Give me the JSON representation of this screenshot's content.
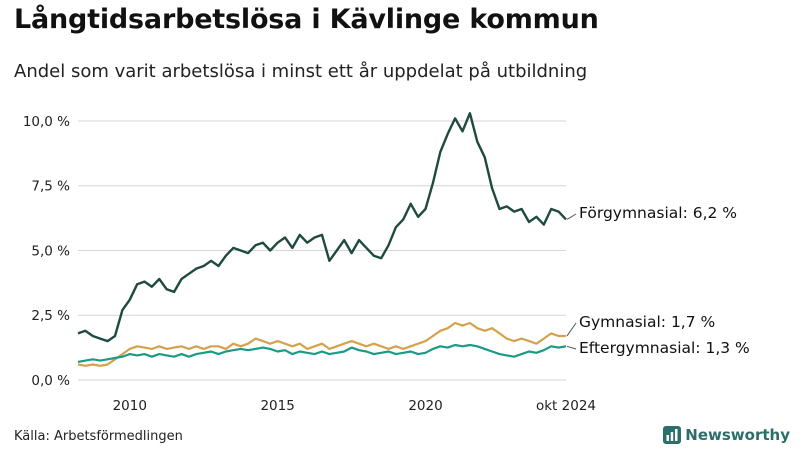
{
  "title": "Långtidsarbetslösa i Kävlinge kommun",
  "subtitle": "Andel som varit arbetslösa i minst ett år uppdelat på utbildning",
  "source": "Källa: Arbetsförmedlingen",
  "brand": "Newsworthy",
  "brand_icon": "bar-chart-icon",
  "colors": {
    "forgymnasial": "#1f4a3f",
    "gymnasial": "#d4a24c",
    "eftergymnasial": "#1b9a86",
    "grid": "#d6d6d6",
    "brand": "#2c6e6c"
  },
  "chart_data": {
    "type": "line",
    "x_start": "2008-04",
    "x_end": "2024-10",
    "x_ticks": [
      {
        "x": "2010-01",
        "label": "2010"
      },
      {
        "x": "2015-01",
        "label": "2015"
      },
      {
        "x": "2020-01",
        "label": "2020"
      },
      {
        "x": "2024-10",
        "label": "okt 2024"
      }
    ],
    "ylim": [
      0,
      10.5
    ],
    "y_ticks": [
      {
        "y": 0,
        "label": "0,0 %"
      },
      {
        "y": 2.5,
        "label": "2,5 %"
      },
      {
        "y": 5,
        "label": "5,0 %"
      },
      {
        "y": 7.5,
        "label": "7,5 %"
      },
      {
        "y": 10,
        "label": "10,0 %"
      }
    ],
    "grid": true,
    "series": [
      {
        "name": "Förgymnasial",
        "label": "Förgymnasial: 6,2 %",
        "last_value": 6.2,
        "color": "#1f4a3f",
        "x": [
          "2008-04",
          "2008-07",
          "2008-10",
          "2009-01",
          "2009-04",
          "2009-07",
          "2009-10",
          "2010-01",
          "2010-04",
          "2010-07",
          "2010-10",
          "2011-01",
          "2011-04",
          "2011-07",
          "2011-10",
          "2012-01",
          "2012-04",
          "2012-07",
          "2012-10",
          "2013-01",
          "2013-04",
          "2013-07",
          "2013-10",
          "2014-01",
          "2014-04",
          "2014-07",
          "2014-10",
          "2015-01",
          "2015-04",
          "2015-07",
          "2015-10",
          "2016-01",
          "2016-04",
          "2016-07",
          "2016-10",
          "2017-01",
          "2017-04",
          "2017-07",
          "2017-10",
          "2018-01",
          "2018-04",
          "2018-07",
          "2018-10",
          "2019-01",
          "2019-04",
          "2019-07",
          "2019-10",
          "2020-01",
          "2020-04",
          "2020-07",
          "2020-10",
          "2021-01",
          "2021-04",
          "2021-07",
          "2021-10",
          "2022-01",
          "2022-04",
          "2022-07",
          "2022-10",
          "2023-01",
          "2023-04",
          "2023-07",
          "2023-10",
          "2024-01",
          "2024-04",
          "2024-07",
          "2024-10"
        ],
        "y": [
          1.8,
          1.9,
          1.7,
          1.6,
          1.5,
          1.7,
          2.7,
          3.1,
          3.7,
          3.8,
          3.6,
          3.9,
          3.5,
          3.4,
          3.9,
          4.1,
          4.3,
          4.4,
          4.6,
          4.4,
          4.8,
          5.1,
          5.0,
          4.9,
          5.2,
          5.3,
          5.0,
          5.3,
          5.5,
          5.1,
          5.6,
          5.3,
          5.5,
          5.6,
          4.6,
          5.0,
          5.4,
          4.9,
          5.4,
          5.1,
          4.8,
          4.7,
          5.2,
          5.9,
          6.2,
          6.8,
          6.3,
          6.6,
          7.6,
          8.8,
          9.5,
          10.1,
          9.6,
          10.3,
          9.2,
          8.6,
          7.4,
          6.6,
          6.7,
          6.5,
          6.6,
          6.1,
          6.3,
          6.0,
          6.6,
          6.5,
          6.2
        ]
      },
      {
        "name": "Gymnasial",
        "label": "Gymnasial: 1,7 %",
        "last_value": 1.7,
        "color": "#d4a24c",
        "x": [
          "2008-04",
          "2008-07",
          "2008-10",
          "2009-01",
          "2009-04",
          "2009-07",
          "2009-10",
          "2010-01",
          "2010-04",
          "2010-07",
          "2010-10",
          "2011-01",
          "2011-04",
          "2011-07",
          "2011-10",
          "2012-01",
          "2012-04",
          "2012-07",
          "2012-10",
          "2013-01",
          "2013-04",
          "2013-07",
          "2013-10",
          "2014-01",
          "2014-04",
          "2014-07",
          "2014-10",
          "2015-01",
          "2015-04",
          "2015-07",
          "2015-10",
          "2016-01",
          "2016-04",
          "2016-07",
          "2016-10",
          "2017-01",
          "2017-04",
          "2017-07",
          "2017-10",
          "2018-01",
          "2018-04",
          "2018-07",
          "2018-10",
          "2019-01",
          "2019-04",
          "2019-07",
          "2019-10",
          "2020-01",
          "2020-04",
          "2020-07",
          "2020-10",
          "2021-01",
          "2021-04",
          "2021-07",
          "2021-10",
          "2022-01",
          "2022-04",
          "2022-07",
          "2022-10",
          "2023-01",
          "2023-04",
          "2023-07",
          "2023-10",
          "2024-01",
          "2024-04",
          "2024-07",
          "2024-10"
        ],
        "y": [
          0.6,
          0.55,
          0.6,
          0.55,
          0.6,
          0.8,
          1.0,
          1.2,
          1.3,
          1.25,
          1.2,
          1.3,
          1.2,
          1.25,
          1.3,
          1.2,
          1.3,
          1.2,
          1.3,
          1.3,
          1.2,
          1.4,
          1.3,
          1.4,
          1.6,
          1.5,
          1.4,
          1.5,
          1.4,
          1.3,
          1.4,
          1.2,
          1.3,
          1.4,
          1.2,
          1.3,
          1.4,
          1.5,
          1.4,
          1.3,
          1.4,
          1.3,
          1.2,
          1.3,
          1.2,
          1.3,
          1.4,
          1.5,
          1.7,
          1.9,
          2.0,
          2.2,
          2.1,
          2.2,
          2.0,
          1.9,
          2.0,
          1.8,
          1.6,
          1.5,
          1.6,
          1.5,
          1.4,
          1.6,
          1.8,
          1.7,
          1.7
        ]
      },
      {
        "name": "Eftergymnasial",
        "label": "Eftergymnasial: 1,3 %",
        "last_value": 1.3,
        "color": "#1b9a86",
        "x": [
          "2008-04",
          "2008-07",
          "2008-10",
          "2009-01",
          "2009-04",
          "2009-07",
          "2009-10",
          "2010-01",
          "2010-04",
          "2010-07",
          "2010-10",
          "2011-01",
          "2011-04",
          "2011-07",
          "2011-10",
          "2012-01",
          "2012-04",
          "2012-07",
          "2012-10",
          "2013-01",
          "2013-04",
          "2013-07",
          "2013-10",
          "2014-01",
          "2014-04",
          "2014-07",
          "2014-10",
          "2015-01",
          "2015-04",
          "2015-07",
          "2015-10",
          "2016-01",
          "2016-04",
          "2016-07",
          "2016-10",
          "2017-01",
          "2017-04",
          "2017-07",
          "2017-10",
          "2018-01",
          "2018-04",
          "2018-07",
          "2018-10",
          "2019-01",
          "2019-04",
          "2019-07",
          "2019-10",
          "2020-01",
          "2020-04",
          "2020-07",
          "2020-10",
          "2021-01",
          "2021-04",
          "2021-07",
          "2021-10",
          "2022-01",
          "2022-04",
          "2022-07",
          "2022-10",
          "2023-01",
          "2023-04",
          "2023-07",
          "2023-10",
          "2024-01",
          "2024-04",
          "2024-07",
          "2024-10"
        ],
        "y": [
          0.7,
          0.75,
          0.8,
          0.75,
          0.8,
          0.85,
          0.9,
          1.0,
          0.95,
          1.0,
          0.9,
          1.0,
          0.95,
          0.9,
          1.0,
          0.9,
          1.0,
          1.05,
          1.1,
          1.0,
          1.1,
          1.15,
          1.2,
          1.15,
          1.2,
          1.25,
          1.2,
          1.1,
          1.15,
          1.0,
          1.1,
          1.05,
          1.0,
          1.1,
          1.0,
          1.05,
          1.1,
          1.25,
          1.15,
          1.1,
          1.0,
          1.05,
          1.1,
          1.0,
          1.05,
          1.1,
          1.0,
          1.05,
          1.2,
          1.3,
          1.25,
          1.35,
          1.3,
          1.35,
          1.3,
          1.2,
          1.1,
          1.0,
          0.95,
          0.9,
          1.0,
          1.1,
          1.05,
          1.15,
          1.3,
          1.25,
          1.3
        ]
      }
    ]
  }
}
